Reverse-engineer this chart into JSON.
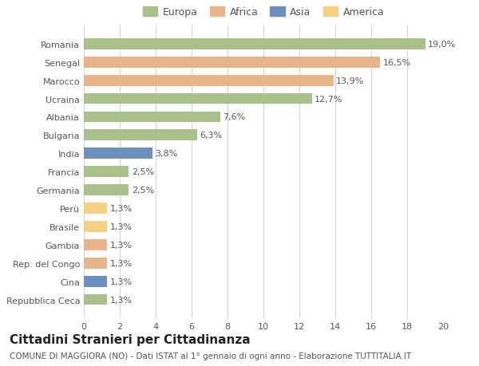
{
  "countries": [
    "Romania",
    "Senegal",
    "Marocco",
    "Ucraina",
    "Albania",
    "Bulgaria",
    "India",
    "Francia",
    "Germania",
    "Perù",
    "Brasile",
    "Gambia",
    "Rep. del Congo",
    "Cina",
    "Repubblica Ceca"
  ],
  "values": [
    19.0,
    16.5,
    13.9,
    12.7,
    7.6,
    6.3,
    3.8,
    2.5,
    2.5,
    1.3,
    1.3,
    1.3,
    1.3,
    1.3,
    1.3
  ],
  "labels": [
    "19,0%",
    "16,5%",
    "13,9%",
    "12,7%",
    "7,6%",
    "6,3%",
    "3,8%",
    "2,5%",
    "2,5%",
    "1,3%",
    "1,3%",
    "1,3%",
    "1,3%",
    "1,3%",
    "1,3%"
  ],
  "continents": [
    "Europa",
    "Africa",
    "Africa",
    "Europa",
    "Europa",
    "Europa",
    "Asia",
    "Europa",
    "Europa",
    "America",
    "America",
    "Africa",
    "Africa",
    "Asia",
    "Europa"
  ],
  "continent_colors": {
    "Europa": "#a8c08a",
    "Africa": "#e8b48a",
    "Asia": "#6b8fbf",
    "America": "#f5d080"
  },
  "legend_order": [
    "Europa",
    "Africa",
    "Asia",
    "America"
  ],
  "bg_color": "#ffffff",
  "grid_color": "#d0d0d0",
  "xlim": [
    0,
    20
  ],
  "xticks": [
    0,
    2,
    4,
    6,
    8,
    10,
    12,
    14,
    16,
    18,
    20
  ],
  "title": "Cittadini Stranieri per Cittadinanza",
  "subtitle": "COMUNE DI MAGGIORA (NO) - Dati ISTAT al 1° gennaio di ogni anno - Elaborazione TUTTITALIA.IT",
  "bar_height": 0.6,
  "label_fontsize": 8,
  "tick_fontsize": 8,
  "title_fontsize": 11,
  "subtitle_fontsize": 7.5,
  "legend_fontsize": 9
}
